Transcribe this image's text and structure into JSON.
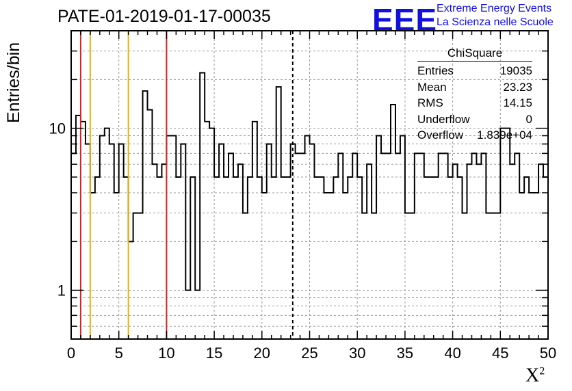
{
  "title": "PATE-01-2019-01-17-00035",
  "logo": {
    "mark": "EEE",
    "line1": "Extreme Energy Events",
    "line2": "La Scienza nelle Scuole",
    "color": "#1010e0"
  },
  "stats_box": {
    "title": "ChiSquare",
    "rows": [
      {
        "label": "Entries",
        "value": "19035"
      },
      {
        "label": "Mean",
        "value": "23.23"
      },
      {
        "label": "RMS",
        "value": "14.15"
      },
      {
        "label": "Underflow",
        "value": "0"
      },
      {
        "label": "Overflow",
        "value": "1.839e+04"
      }
    ]
  },
  "chart_data": {
    "type": "histogram",
    "ylabel": "Entries/bin",
    "xlabel": "X",
    "xlabel_superscript": "2",
    "xlim": [
      0,
      50
    ],
    "ylim": [
      0.5,
      40
    ],
    "yscale": "log",
    "grid": true,
    "bin_width": 0.5,
    "x_ticks": [
      "0",
      "5",
      "10",
      "15",
      "20",
      "25",
      "30",
      "35",
      "40",
      "45",
      "50"
    ],
    "y_ticks": [
      {
        "value": 1,
        "label": "1"
      },
      {
        "value": 10,
        "label": "10"
      }
    ],
    "counts": [
      7,
      12,
      11,
      8,
      4,
      5,
      9,
      10,
      8,
      4,
      8,
      5,
      2,
      3,
      3,
      17,
      13,
      6,
      5,
      6,
      9,
      9,
      5,
      8,
      1,
      5,
      1,
      22,
      11,
      10,
      5,
      8,
      5,
      7,
      5,
      6,
      3,
      5,
      11,
      5,
      4,
      8,
      5,
      18,
      5,
      5,
      8,
      7,
      7,
      9,
      8,
      5,
      5,
      4,
      4,
      5,
      7,
      4,
      5,
      7,
      5,
      3,
      6,
      3,
      9,
      7,
      7,
      14,
      7,
      9,
      3,
      3,
      7,
      7,
      5,
      5,
      5,
      7,
      7,
      5,
      6,
      5,
      3,
      6,
      7,
      6,
      7,
      3,
      3,
      3,
      10,
      10,
      6,
      7,
      4,
      5,
      4,
      4,
      6,
      5
    ],
    "vertical_lines": [
      {
        "x": 1,
        "color": "#e02020",
        "style": "solid"
      },
      {
        "x": 2,
        "color": "#f0b000",
        "style": "solid"
      },
      {
        "x": 6,
        "color": "#f0b000",
        "style": "solid"
      },
      {
        "x": 10,
        "color": "#e02020",
        "style": "solid"
      },
      {
        "x": 23.23,
        "color": "#000000",
        "style": "dashed"
      }
    ]
  }
}
